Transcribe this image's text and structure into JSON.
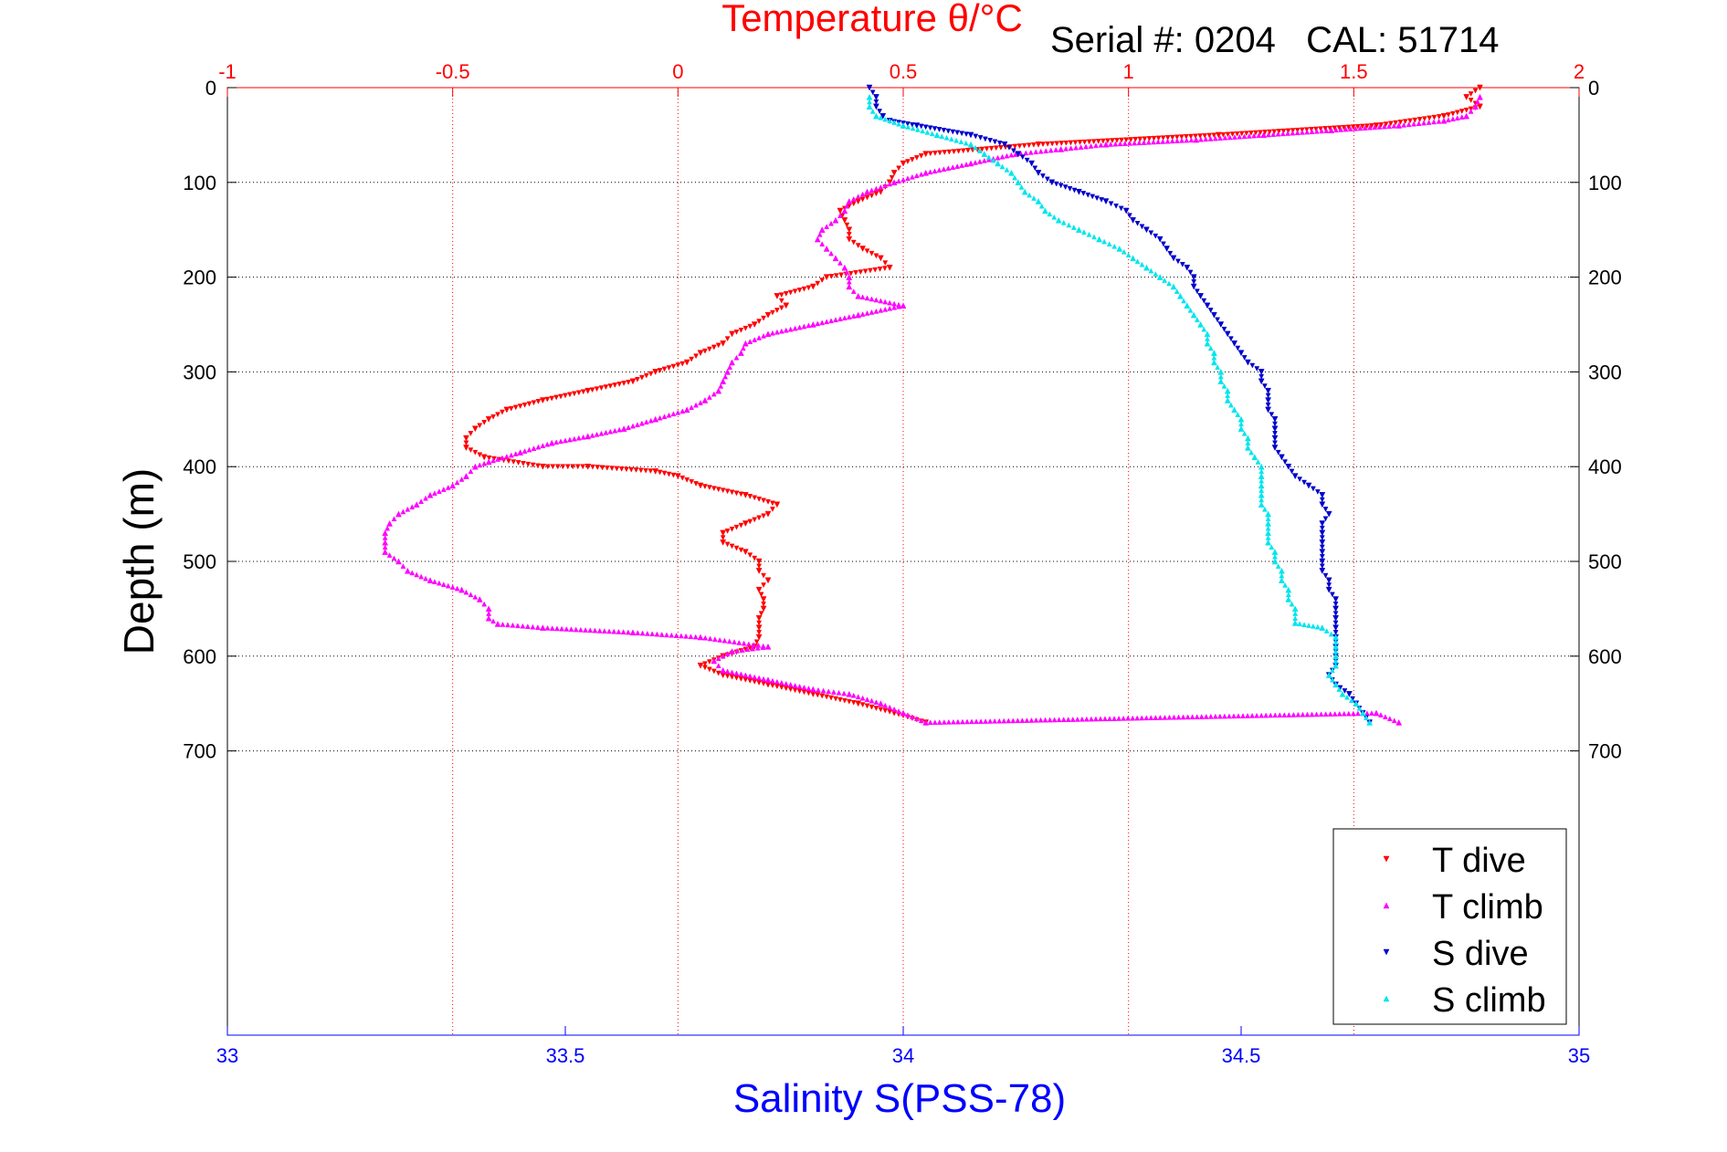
{
  "chart_data": {
    "type": "scatter",
    "title": "Temperature θ/°C",
    "subtitle": "Serial #: 0204   CAL: 51714",
    "xlabel_top": "Temperature θ/°C",
    "xlabel_bottom": "Salinity S(PSS-78)",
    "ylabel": "Depth (m)",
    "temperature_axis": {
      "range": [
        -1,
        2
      ],
      "ticks": [
        -1,
        -0.5,
        0,
        0.5,
        1,
        1.5,
        2
      ],
      "tick_labels": [
        "-1",
        "-0.5",
        "0",
        "0.5",
        "1",
        "1.5",
        "2"
      ]
    },
    "salinity_axis": {
      "range": [
        33,
        35
      ],
      "ticks": [
        33,
        33.5,
        34,
        34.5,
        35
      ],
      "tick_labels": [
        "33",
        "33.5",
        "34",
        "34.5",
        "35"
      ]
    },
    "depth_axis": {
      "range": [
        0,
        1000
      ],
      "inverted": true,
      "ticks": [
        0,
        100,
        200,
        300,
        400,
        500,
        600,
        700
      ],
      "tick_labels": [
        "0",
        "100",
        "200",
        "300",
        "400",
        "500",
        "600",
        "700"
      ]
    },
    "grid": true,
    "legend_position": "bottom-right",
    "colors": {
      "t_dive": "#ff0000",
      "t_climb": "#ff00ff",
      "s_dive": "#0000cc",
      "s_climb": "#00e5ee",
      "temperature_axis": "#ff0000",
      "salinity_axis": "#0000ff"
    },
    "series": [
      {
        "name": "T dive",
        "key": "t_dive",
        "axis": "temperature",
        "marker": "triangle-down",
        "points": [
          [
            1.78,
            0
          ],
          [
            1.75,
            10
          ],
          [
            1.78,
            20
          ],
          [
            1.7,
            30
          ],
          [
            1.55,
            40
          ],
          [
            1.2,
            50
          ],
          [
            0.8,
            60
          ],
          [
            0.55,
            70
          ],
          [
            0.5,
            80
          ],
          [
            0.48,
            90
          ],
          [
            0.47,
            100
          ],
          [
            0.45,
            110
          ],
          [
            0.4,
            120
          ],
          [
            0.36,
            130
          ],
          [
            0.37,
            140
          ],
          [
            0.38,
            150
          ],
          [
            0.38,
            160
          ],
          [
            0.41,
            170
          ],
          [
            0.45,
            180
          ],
          [
            0.47,
            190
          ],
          [
            0.33,
            200
          ],
          [
            0.3,
            210
          ],
          [
            0.22,
            220
          ],
          [
            0.24,
            230
          ],
          [
            0.2,
            240
          ],
          [
            0.17,
            250
          ],
          [
            0.12,
            260
          ],
          [
            0.1,
            270
          ],
          [
            0.05,
            280
          ],
          [
            0.02,
            290
          ],
          [
            -0.05,
            300
          ],
          [
            -0.1,
            310
          ],
          [
            -0.2,
            320
          ],
          [
            -0.3,
            330
          ],
          [
            -0.38,
            340
          ],
          [
            -0.42,
            350
          ],
          [
            -0.45,
            360
          ],
          [
            -0.47,
            370
          ],
          [
            -0.47,
            380
          ],
          [
            -0.43,
            390
          ],
          [
            -0.3,
            400
          ],
          [
            -0.2,
            400
          ],
          [
            -0.05,
            405
          ],
          [
            0.0,
            410
          ],
          [
            0.05,
            420
          ],
          [
            0.15,
            430
          ],
          [
            0.22,
            440
          ],
          [
            0.2,
            450
          ],
          [
            0.15,
            460
          ],
          [
            0.1,
            470
          ],
          [
            0.1,
            480
          ],
          [
            0.15,
            490
          ],
          [
            0.18,
            500
          ],
          [
            0.18,
            510
          ],
          [
            0.2,
            520
          ],
          [
            0.18,
            530
          ],
          [
            0.19,
            540
          ],
          [
            0.19,
            550
          ],
          [
            0.18,
            560
          ],
          [
            0.18,
            570
          ],
          [
            0.18,
            580
          ],
          [
            0.17,
            590
          ],
          [
            0.1,
            600
          ],
          [
            0.05,
            610
          ],
          [
            0.1,
            620
          ],
          [
            0.2,
            630
          ],
          [
            0.3,
            640
          ],
          [
            0.4,
            650
          ],
          [
            0.48,
            660
          ],
          [
            0.55,
            670
          ]
        ]
      },
      {
        "name": "T climb",
        "key": "t_climb",
        "axis": "temperature",
        "marker": "triangle-up",
        "points": [
          [
            1.6,
            670
          ],
          [
            1.55,
            660
          ],
          [
            0.55,
            670
          ],
          [
            0.5,
            660
          ],
          [
            0.45,
            650
          ],
          [
            0.38,
            640
          ],
          [
            0.3,
            635
          ],
          [
            0.2,
            625
          ],
          [
            0.1,
            615
          ],
          [
            0.08,
            605
          ],
          [
            0.12,
            595
          ],
          [
            0.2,
            590
          ],
          [
            0.05,
            580
          ],
          [
            -0.1,
            575
          ],
          [
            -0.3,
            570
          ],
          [
            -0.4,
            566
          ],
          [
            -0.42,
            560
          ],
          [
            -0.42,
            550
          ],
          [
            -0.44,
            540
          ],
          [
            -0.48,
            530
          ],
          [
            -0.55,
            520
          ],
          [
            -0.6,
            510
          ],
          [
            -0.62,
            500
          ],
          [
            -0.65,
            490
          ],
          [
            -0.65,
            480
          ],
          [
            -0.65,
            470
          ],
          [
            -0.64,
            460
          ],
          [
            -0.62,
            450
          ],
          [
            -0.58,
            440
          ],
          [
            -0.55,
            430
          ],
          [
            -0.5,
            420
          ],
          [
            -0.47,
            410
          ],
          [
            -0.45,
            400
          ],
          [
            -0.42,
            395
          ],
          [
            -0.35,
            385
          ],
          [
            -0.28,
            375
          ],
          [
            -0.2,
            368
          ],
          [
            -0.12,
            360
          ],
          [
            -0.05,
            350
          ],
          [
            0.02,
            340
          ],
          [
            0.06,
            330
          ],
          [
            0.09,
            320
          ],
          [
            0.1,
            310
          ],
          [
            0.11,
            300
          ],
          [
            0.12,
            290
          ],
          [
            0.14,
            280
          ],
          [
            0.15,
            270
          ],
          [
            0.2,
            260
          ],
          [
            0.3,
            250
          ],
          [
            0.4,
            240
          ],
          [
            0.5,
            230
          ],
          [
            0.4,
            220
          ],
          [
            0.38,
            210
          ],
          [
            0.38,
            200
          ],
          [
            0.37,
            190
          ],
          [
            0.35,
            180
          ],
          [
            0.33,
            170
          ],
          [
            0.31,
            160
          ],
          [
            0.32,
            150
          ],
          [
            0.35,
            140
          ],
          [
            0.37,
            130
          ],
          [
            0.38,
            120
          ],
          [
            0.42,
            110
          ],
          [
            0.48,
            100
          ],
          [
            0.55,
            90
          ],
          [
            0.65,
            80
          ],
          [
            0.75,
            70
          ],
          [
            0.85,
            65
          ],
          [
            0.95,
            60
          ],
          [
            1.15,
            55
          ],
          [
            1.3,
            50
          ],
          [
            1.45,
            45
          ],
          [
            1.6,
            40
          ],
          [
            1.7,
            35
          ],
          [
            1.75,
            30
          ],
          [
            1.77,
            20
          ],
          [
            1.78,
            10
          ]
        ]
      },
      {
        "name": "S dive",
        "key": "s_dive",
        "axis": "salinity",
        "marker": "triangle-down",
        "points": [
          [
            33.95,
            0
          ],
          [
            33.96,
            10
          ],
          [
            33.96,
            20
          ],
          [
            33.97,
            30
          ],
          [
            33.98,
            35
          ],
          [
            34.02,
            40
          ],
          [
            34.1,
            50
          ],
          [
            34.15,
            60
          ],
          [
            34.17,
            70
          ],
          [
            34.19,
            80
          ],
          [
            34.2,
            90
          ],
          [
            34.22,
            100
          ],
          [
            34.26,
            110
          ],
          [
            34.3,
            120
          ],
          [
            34.33,
            130
          ],
          [
            34.34,
            140
          ],
          [
            34.36,
            150
          ],
          [
            34.38,
            160
          ],
          [
            34.39,
            170
          ],
          [
            34.4,
            180
          ],
          [
            34.42,
            190
          ],
          [
            34.43,
            200
          ],
          [
            34.43,
            210
          ],
          [
            34.44,
            220
          ],
          [
            34.45,
            230
          ],
          [
            34.46,
            240
          ],
          [
            34.47,
            250
          ],
          [
            34.48,
            260
          ],
          [
            34.49,
            270
          ],
          [
            34.5,
            280
          ],
          [
            34.51,
            290
          ],
          [
            34.53,
            300
          ],
          [
            34.53,
            310
          ],
          [
            34.54,
            320
          ],
          [
            34.54,
            330
          ],
          [
            34.54,
            340
          ],
          [
            34.55,
            350
          ],
          [
            34.55,
            360
          ],
          [
            34.55,
            370
          ],
          [
            34.55,
            380
          ],
          [
            34.56,
            390
          ],
          [
            34.57,
            400
          ],
          [
            34.58,
            410
          ],
          [
            34.6,
            420
          ],
          [
            34.62,
            430
          ],
          [
            34.62,
            440
          ],
          [
            34.63,
            450
          ],
          [
            34.62,
            460
          ],
          [
            34.62,
            470
          ],
          [
            34.62,
            480
          ],
          [
            34.62,
            490
          ],
          [
            34.62,
            500
          ],
          [
            34.62,
            510
          ],
          [
            34.63,
            520
          ],
          [
            34.63,
            530
          ],
          [
            34.64,
            540
          ],
          [
            34.64,
            550
          ],
          [
            34.64,
            560
          ],
          [
            34.64,
            570
          ],
          [
            34.64,
            580
          ],
          [
            34.64,
            590
          ],
          [
            34.64,
            600
          ],
          [
            34.64,
            610
          ],
          [
            34.63,
            620
          ],
          [
            34.64,
            630
          ],
          [
            34.66,
            640
          ],
          [
            34.67,
            650
          ],
          [
            34.68,
            660
          ],
          [
            34.69,
            670
          ]
        ]
      },
      {
        "name": "S climb",
        "key": "s_climb",
        "axis": "salinity",
        "marker": "triangle-up",
        "points": [
          [
            34.69,
            670
          ],
          [
            34.68,
            660
          ],
          [
            34.67,
            650
          ],
          [
            34.65,
            640
          ],
          [
            34.64,
            630
          ],
          [
            34.63,
            620
          ],
          [
            34.64,
            610
          ],
          [
            34.64,
            600
          ],
          [
            34.64,
            590
          ],
          [
            34.64,
            580
          ],
          [
            34.62,
            570
          ],
          [
            34.58,
            565
          ],
          [
            34.58,
            550
          ],
          [
            34.57,
            540
          ],
          [
            34.57,
            530
          ],
          [
            34.56,
            520
          ],
          [
            34.56,
            510
          ],
          [
            34.55,
            500
          ],
          [
            34.55,
            490
          ],
          [
            34.54,
            480
          ],
          [
            34.54,
            470
          ],
          [
            34.54,
            460
          ],
          [
            34.54,
            450
          ],
          [
            34.53,
            440
          ],
          [
            34.53,
            430
          ],
          [
            34.53,
            420
          ],
          [
            34.53,
            410
          ],
          [
            34.53,
            400
          ],
          [
            34.52,
            390
          ],
          [
            34.51,
            380
          ],
          [
            34.51,
            370
          ],
          [
            34.5,
            360
          ],
          [
            34.5,
            350
          ],
          [
            34.49,
            340
          ],
          [
            34.48,
            330
          ],
          [
            34.48,
            320
          ],
          [
            34.47,
            310
          ],
          [
            34.47,
            300
          ],
          [
            34.46,
            290
          ],
          [
            34.46,
            280
          ],
          [
            34.45,
            270
          ],
          [
            34.45,
            260
          ],
          [
            34.44,
            250
          ],
          [
            34.43,
            240
          ],
          [
            34.42,
            230
          ],
          [
            34.41,
            220
          ],
          [
            34.4,
            210
          ],
          [
            34.38,
            200
          ],
          [
            34.36,
            190
          ],
          [
            34.34,
            180
          ],
          [
            34.32,
            170
          ],
          [
            34.29,
            160
          ],
          [
            34.26,
            150
          ],
          [
            34.23,
            140
          ],
          [
            34.21,
            130
          ],
          [
            34.2,
            120
          ],
          [
            34.18,
            110
          ],
          [
            34.17,
            100
          ],
          [
            34.16,
            90
          ],
          [
            34.14,
            80
          ],
          [
            34.12,
            70
          ],
          [
            34.1,
            60
          ],
          [
            34.05,
            50
          ],
          [
            34.0,
            40
          ],
          [
            33.96,
            30
          ],
          [
            33.95,
            20
          ],
          [
            33.95,
            10
          ]
        ]
      }
    ]
  }
}
